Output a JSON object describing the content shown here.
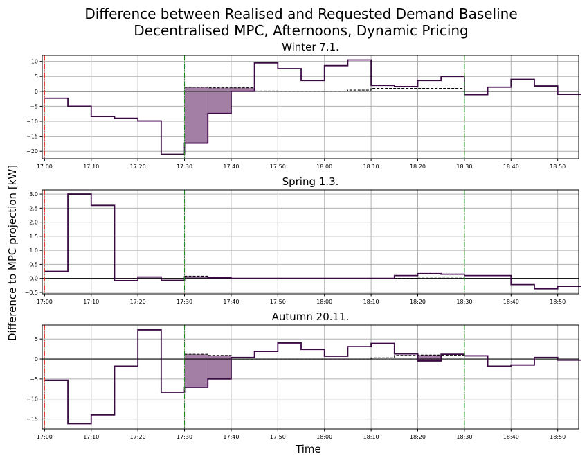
{
  "figure": {
    "title_line1": "Difference between Realised and Requested Demand Baseline",
    "title_line2": "Decentralised MPC, Afternoons, Dynamic Pricing",
    "ylabel": "Difference to MPC projection [kW]",
    "xlabel": "Time"
  },
  "colors": {
    "series": "#3b0a45",
    "fill": "#a37ea5",
    "baseline_dashed": "#000000",
    "zero_line": "#000000",
    "vline_start": "#e8312a",
    "vline_window": "#1f8a1f",
    "grid": "#b0b0b0"
  },
  "chart_data": [
    {
      "type": "line",
      "title": "Winter 7.1.",
      "xlim": [
        -0.5,
        114.5
      ],
      "ylim": [
        -22.5,
        12
      ],
      "yticks": [
        -20,
        -15,
        -10,
        -5,
        0,
        5,
        10
      ],
      "xtick_minutes": [
        0,
        10,
        20,
        30,
        40,
        50,
        60,
        70,
        80,
        90,
        100,
        110
      ],
      "xtick_labels": [
        "17:00",
        "17:10",
        "17:20",
        "17:30",
        "17:40",
        "17:50",
        "18:00",
        "18:10",
        "18:20",
        "18:30",
        "18:40",
        "18:50"
      ],
      "step_minutes": 5,
      "realised": [
        -2.3,
        -5.0,
        -8.4,
        -9.0,
        -9.9,
        -21.0,
        -17.3,
        -7.4,
        0.0,
        9.5,
        7.6,
        3.6,
        8.6,
        10.5,
        2.0,
        1.6,
        3.6,
        5.0,
        -1.1,
        1.4,
        4.0,
        1.8,
        -1.0
      ],
      "baseline": [
        null,
        null,
        null,
        null,
        null,
        null,
        1.4,
        1.2,
        1.2,
        0.1,
        0.0,
        0.0,
        0.0,
        0.4,
        1.0,
        1.0,
        1.0,
        1.0,
        null,
        null,
        null,
        null,
        null
      ],
      "grid": true
    },
    {
      "type": "line",
      "title": "Spring 1.3.",
      "xlim": [
        -0.5,
        114.5
      ],
      "ylim": [
        -0.55,
        3.15
      ],
      "yticks": [
        -0.5,
        0.0,
        0.5,
        1.0,
        1.5,
        2.0,
        2.5,
        3.0
      ],
      "ytick_labels": [
        "−0.5",
        "0.0",
        "0.5",
        "1.0",
        "1.5",
        "2.0",
        "2.5",
        "3.0"
      ],
      "xtick_minutes": [
        0,
        10,
        20,
        30,
        40,
        50,
        60,
        70,
        80,
        90,
        100,
        110
      ],
      "xtick_labels": [
        "17:00",
        "17:10",
        "17:20",
        "17:30",
        "17:40",
        "17:50",
        "18:00",
        "18:10",
        "18:20",
        "18:30",
        "18:40",
        "18:50"
      ],
      "step_minutes": 5,
      "realised": [
        0.25,
        3.0,
        2.6,
        -0.08,
        0.05,
        -0.07,
        0.05,
        0.02,
        0.0,
        0.0,
        0.0,
        0.0,
        0.0,
        0.0,
        0.0,
        0.1,
        0.17,
        0.15,
        0.1,
        0.1,
        -0.22,
        -0.37,
        -0.28
      ],
      "baseline": [
        null,
        null,
        null,
        null,
        null,
        null,
        0.08,
        0.03,
        0.0,
        0.0,
        0.0,
        0.0,
        0.0,
        0.0,
        0.0,
        0.0,
        0.05,
        0.05,
        null,
        null,
        null,
        null,
        null
      ],
      "grid": true
    },
    {
      "type": "line",
      "title": "Autumn 20.11.",
      "xlim": [
        -0.5,
        114.5
      ],
      "ylim": [
        -17.5,
        8.5
      ],
      "yticks": [
        -15,
        -10,
        -5,
        0,
        5
      ],
      "xtick_minutes": [
        0,
        10,
        20,
        30,
        40,
        50,
        60,
        70,
        80,
        90,
        100,
        110
      ],
      "xtick_labels": [
        "17:00",
        "17:10",
        "17:20",
        "17:30",
        "17:40",
        "17:50",
        "18:00",
        "18:10",
        "18:20",
        "18:30",
        "18:40",
        "18:50"
      ],
      "step_minutes": 5,
      "realised": [
        -5.3,
        -16.2,
        -14.0,
        -1.8,
        7.3,
        -8.3,
        -7.1,
        -5.0,
        0.4,
        1.9,
        4.0,
        2.4,
        0.7,
        3.1,
        3.9,
        1.3,
        -0.5,
        1.2,
        0.8,
        -1.8,
        -1.5,
        0.4,
        -0.3
      ],
      "baseline": [
        null,
        null,
        null,
        null,
        null,
        null,
        1.2,
        0.9,
        0.0,
        0.0,
        0.0,
        0.0,
        0.0,
        0.0,
        0.3,
        0.9,
        1.0,
        1.0,
        null,
        null,
        null,
        null,
        null
      ],
      "grid": true
    }
  ]
}
